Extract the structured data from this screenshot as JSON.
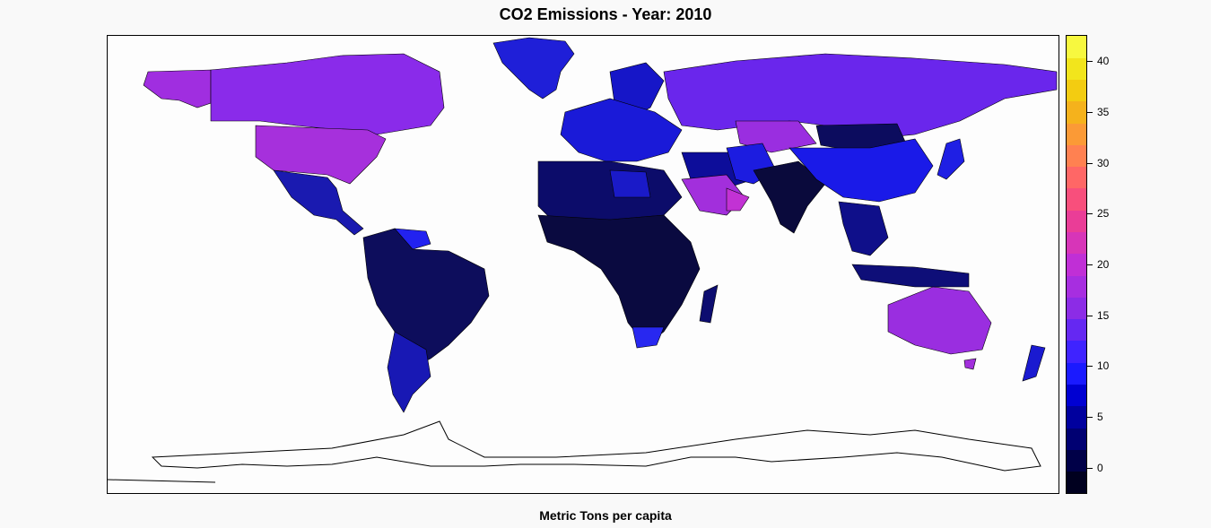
{
  "title": "CO2 Emissions - Year: 2010",
  "legend_label": "Metric Tons per capita",
  "colorbar": {
    "ticks": [
      "0",
      "5",
      "10",
      "15",
      "20",
      "25",
      "30",
      "35",
      "40"
    ],
    "range": [
      -2.5,
      42.5
    ],
    "bands": [
      "#00001f",
      "#000048",
      "#000072",
      "#00009e",
      "#0000d2",
      "#1a1aff",
      "#3f23ff",
      "#6528f2",
      "#8c2ce6",
      "#a72ee0",
      "#c02fd6",
      "#d735b8",
      "#ea3d97",
      "#f84f7c",
      "#ff6766",
      "#ff8151",
      "#fb9a36",
      "#f5b21c",
      "#f3cc11",
      "#f2e51c",
      "#f7f83f"
    ]
  },
  "map_colors": {
    "land_dark": "#0a0a3c",
    "land_navy": "#0d0d5c",
    "land_blue": "#1414b4",
    "land_bright_blue": "#1a1aee",
    "land_violet": "#5a22f2",
    "land_purple": "#8a2be2",
    "land_magenta": "#b030d8",
    "ocean": "#fdfdfd",
    "border": "#000000"
  }
}
